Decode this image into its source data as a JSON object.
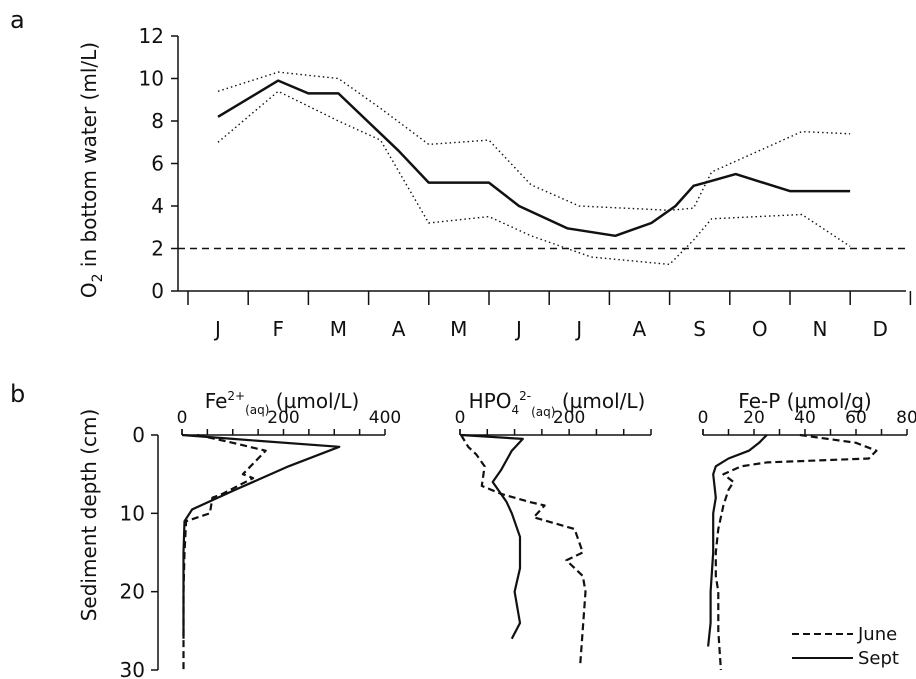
{
  "chart_data": [
    {
      "panel_label": "a",
      "type": "line",
      "ylabel": "O2 in bottom water (ml/L)",
      "ylabel_base": "O",
      "ylabel_sub": "2",
      "ylabel_rest": " in bottom water (ml/L)",
      "ylim": [
        0,
        12
      ],
      "yticks": [
        0,
        2,
        4,
        6,
        8,
        10,
        12
      ],
      "months": [
        "J",
        "F",
        "M",
        "A",
        "M",
        "J",
        "J",
        "A",
        "S",
        "O",
        "N",
        "D"
      ],
      "threshold": 2,
      "series": [
        {
          "style": "solid",
          "x": [
            0.0,
            1.0,
            1.5,
            2.0,
            3.0,
            3.5,
            4.5,
            5.0,
            5.8,
            6.6,
            7.2,
            7.6,
            7.9,
            8.1,
            8.6,
            9.5,
            10.5
          ],
          "values": [
            8.2,
            9.9,
            9.3,
            9.3,
            6.6,
            5.1,
            5.1,
            4.0,
            2.95,
            2.6,
            3.2,
            4.0,
            4.95,
            5.1,
            5.5,
            4.7,
            4.7
          ]
        },
        {
          "style": "dotted",
          "x": [
            0.0,
            1.0,
            2.0,
            2.7,
            3.5,
            4.5,
            5.2,
            6.0,
            7.5,
            7.9,
            8.2,
            9.7,
            10.5
          ],
          "values": [
            9.4,
            10.3,
            10.0,
            8.6,
            6.9,
            7.1,
            5.0,
            4.0,
            3.8,
            3.9,
            5.6,
            7.5,
            7.4
          ]
        },
        {
          "style": "dotted",
          "x": [
            0.0,
            1.0,
            2.0,
            2.7,
            3.5,
            4.5,
            5.2,
            6.2,
            7.5,
            7.9,
            8.2,
            9.7,
            10.5
          ],
          "values": [
            7.0,
            9.4,
            8.0,
            7.1,
            3.2,
            3.5,
            2.6,
            1.6,
            1.25,
            2.4,
            3.4,
            3.6,
            2.1
          ]
        }
      ]
    },
    {
      "panel_label": "b",
      "type": "line",
      "ylabel": "Sediment depth (cm)",
      "ylim": [
        0,
        30
      ],
      "yticks": [
        0,
        10,
        20,
        30
      ],
      "legend": [
        {
          "name": "June",
          "style": "dashed"
        },
        {
          "name": "Sept",
          "style": "solid"
        }
      ],
      "subplots": [
        {
          "title_base": "Fe",
          "title_sup": "2+",
          "title_sub": "(aq)",
          "title_units": " (µmol/L)",
          "xlim": [
            0,
            400
          ],
          "xticks": [
            0,
            200,
            400
          ],
          "series": [
            {
              "name": "June",
              "style": "dashed",
              "x": [
                30,
                100,
                165,
                120,
                140,
                80,
                60,
                55,
                8,
                5,
                3,
                3,
                3
              ],
              "y": [
                0,
                1,
                2,
                5,
                5.5,
                7.5,
                8,
                10,
                11,
                15,
                20,
                25,
                30
              ]
            },
            {
              "name": "Sept",
              "style": "solid",
              "x": [
                0,
                100,
                310,
                210,
                105,
                20,
                5,
                3,
                3,
                3
              ],
              "y": [
                0,
                0.5,
                1.5,
                4,
                7,
                9.5,
                11,
                15,
                20,
                26
              ]
            }
          ]
        },
        {
          "title_base": "HPO",
          "title_sub1": "4",
          "title_sup": "2-",
          "title_sub": "(aq)",
          "title_units": " (µmol/L)",
          "xlim": [
            0,
            350
          ],
          "xticks": [
            0,
            200
          ],
          "series": [
            {
              "name": "June",
              "style": "dashed",
              "x": [
                2,
                15,
                30,
                45,
                40,
                75,
                125,
                155,
                135,
                210,
                215,
                225,
                195,
                225,
                230,
                220
              ],
              "y": [
                0,
                1.5,
                2.5,
                4,
                6.5,
                7.5,
                8.5,
                9,
                10.5,
                12,
                13,
                15,
                16,
                18,
                20,
                29.5
              ]
            },
            {
              "name": "Sept",
              "style": "solid",
              "x": [
                2,
                115,
                95,
                75,
                60,
                85,
                95,
                110,
                110,
                100,
                110,
                95
              ],
              "y": [
                0,
                0.5,
                2,
                4.5,
                6,
                8.5,
                10,
                13,
                17,
                20,
                24,
                26
              ]
            }
          ]
        },
        {
          "title": "Fe-P (µmol/g)",
          "xlim": [
            0,
            80
          ],
          "xticks": [
            0,
            20,
            40,
            60,
            80
          ],
          "series": [
            {
              "name": "June",
              "style": "dashed",
              "x": [
                38,
                60,
                68,
                65,
                25,
                15,
                8,
                12,
                10,
                8,
                6,
                5,
                5,
                6,
                6,
                7
              ],
              "y": [
                0,
                1,
                2,
                3,
                3.5,
                4,
                5,
                6,
                7,
                9,
                12,
                15,
                18,
                20,
                25,
                30
              ]
            },
            {
              "name": "Sept",
              "style": "solid",
              "x": [
                25,
                22,
                18,
                10,
                5,
                4,
                5,
                4,
                4,
                3,
                3,
                2
              ],
              "y": [
                0,
                1,
                2,
                3,
                4,
                5,
                8,
                10,
                15,
                20,
                24,
                27
              ]
            }
          ]
        }
      ]
    }
  ]
}
